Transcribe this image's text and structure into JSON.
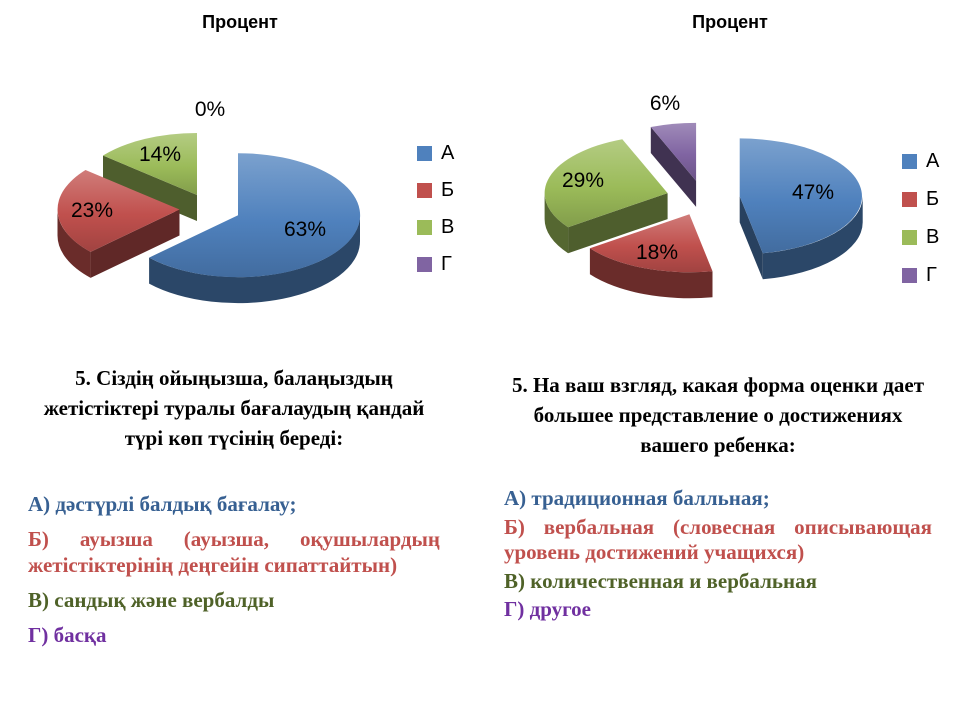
{
  "chart_data": [
    {
      "type": "pie",
      "style": "3d-exploded",
      "title": "Процент",
      "categories": [
        "А",
        "Б",
        "В",
        "Г"
      ],
      "values": [
        63,
        23,
        14,
        0
      ],
      "labels": [
        "63%",
        "23%",
        "14%",
        "0%"
      ],
      "colors": [
        "#4F81BD",
        "#C0504D",
        "#9BBB59",
        "#8064A2"
      ],
      "legend_position": "right"
    },
    {
      "type": "pie",
      "style": "3d-exploded",
      "title": "Процент",
      "categories": [
        "А",
        "Б",
        "В",
        "Г"
      ],
      "values": [
        47,
        18,
        29,
        6
      ],
      "labels": [
        "47%",
        "18%",
        "29%",
        "6%"
      ],
      "colors": [
        "#4F81BD",
        "#C0504D",
        "#9BBB59",
        "#8064A2"
      ],
      "legend_position": "right"
    }
  ],
  "panels": {
    "left": {
      "question": "5. Сіздің ойыңызша, балаңыздың жетістіктері туралы бағалаудың қандай түрі көп түсінің береді:",
      "options": [
        {
          "key": "А",
          "text": "А) дәстүрлі балдық бағалау;",
          "color": "#376092"
        },
        {
          "key": "Б",
          "text": "Б) ауызша (ауызша, оқушылардың жетістіктерінің деңгейін сипаттайтын)",
          "color": "#C0504D"
        },
        {
          "key": "В",
          "text": "В) сандық және вербалды",
          "color": "#4F6228"
        },
        {
          "key": "Г",
          "text": "Г) басқа",
          "color": "#7030A0"
        }
      ]
    },
    "right": {
      "question": "5. На ваш взгляд, какая форма оценки дает большее представление о достижениях вашего ребенка:",
      "options": [
        {
          "key": "А",
          "text": "А) традиционная балльная;",
          "color": "#376092"
        },
        {
          "key": "Б",
          "text": "Б) вербальная (словесная описывающая уровень достижений учащихся)",
          "color": "#C0504D"
        },
        {
          "key": "В",
          "text": "В) количественная и вербальная",
          "color": "#4F6228"
        },
        {
          "key": "Г",
          "text": "Г) другое",
          "color": "#7030A0"
        }
      ]
    }
  }
}
